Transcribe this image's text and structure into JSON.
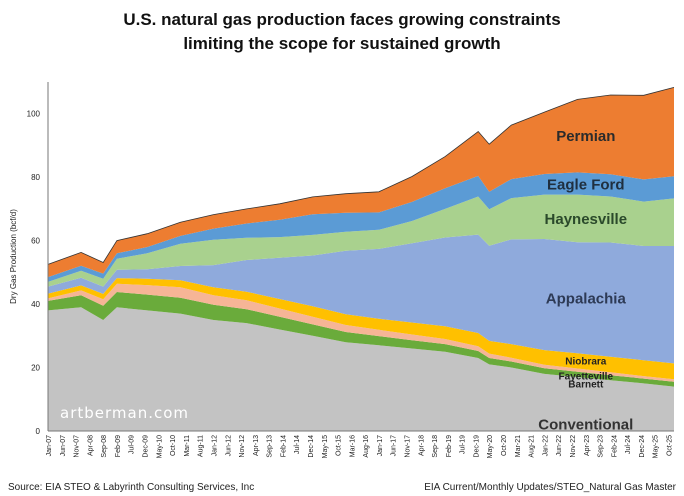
{
  "title_line1": "U.S. natural gas production faces growing constraints",
  "title_line2": "limiting the scope for sustained growth",
  "source_left": "Source: EIA STEO & Labyrinth Consulting Services, Inc",
  "source_right": "EIA Current/Monthly Updates/STEO_Natural Gas Master",
  "watermark": "artberman.com",
  "colors": {
    "Conventional": "#c3c3c3",
    "Barnett": "#6aab3b",
    "Fayetteville": "#f6b596",
    "Niobrara": "#ffc000",
    "Appalachia": "#8faadc",
    "Haynesville": "#a9d18e",
    "Eagle Ford": "#5b9bd5",
    "Permian": "#ed7d31"
  },
  "chart_data": {
    "type": "area",
    "stacked": true,
    "title": "U.S. natural gas production faces growing constraints limiting the scope for sustained growth",
    "xlabel": "",
    "ylabel": "Dry Gas Production (bcf/d)",
    "ylim": [
      0,
      110
    ],
    "yticks": [
      0,
      20,
      40,
      60,
      80,
      100
    ],
    "grid": false,
    "x": [
      "Jan-07",
      "Jan-08",
      "Sep-08",
      "Feb-09",
      "Jan-10",
      "Jan-11",
      "Jan-12",
      "Jan-13",
      "Jan-14",
      "Jan-15",
      "Jan-16",
      "Jan-17",
      "Jan-18",
      "Jan-19",
      "Jan-20",
      "May-20",
      "Jan-21",
      "Jan-22",
      "Jan-23",
      "Jan-24",
      "Jan-25",
      "Dec-25"
    ],
    "xticks": [
      "Jan-07",
      "Jun-07",
      "Nov-07",
      "Apr-08",
      "Sep-08",
      "Feb-09",
      "Jul-09",
      "Dec-09",
      "May-10",
      "Oct-10",
      "Mar-11",
      "Aug-11",
      "Jan-12",
      "Jun-12",
      "Nov-12",
      "Apr-13",
      "Sep-13",
      "Feb-14",
      "Jul-14",
      "Dec-14",
      "May-15",
      "Oct-15",
      "Mar-16",
      "Aug-16",
      "Jan-17",
      "Jun-17",
      "Nov-17",
      "Apr-18",
      "Sep-18",
      "Feb-19",
      "Jul-19",
      "Dec-19",
      "May-20",
      "Oct-20",
      "Mar-21",
      "Aug-21",
      "Jan-22",
      "Jun-22",
      "Nov-22",
      "Apr-23",
      "Sep-23",
      "Feb-24",
      "Jul-24",
      "Dec-24",
      "May-25",
      "Oct-25"
    ],
    "series": [
      {
        "name": "Conventional",
        "values": [
          38,
          39,
          35,
          39,
          38,
          37,
          35,
          34,
          32,
          30,
          28,
          27,
          26,
          25,
          23,
          21,
          20,
          18,
          17,
          16,
          15,
          14
        ]
      },
      {
        "name": "Barnett",
        "values": [
          3.0,
          3.8,
          4.5,
          4.8,
          5.0,
          5.0,
          4.8,
          4.4,
          4.0,
          3.6,
          3.2,
          2.9,
          2.6,
          2.4,
          2.2,
          2.0,
          1.9,
          1.8,
          1.7,
          1.6,
          1.5,
          1.5
        ]
      },
      {
        "name": "Fayetteville",
        "values": [
          0.8,
          1.5,
          2.0,
          2.6,
          3.0,
          3.3,
          3.0,
          2.8,
          2.6,
          2.4,
          2.2,
          2.0,
          1.8,
          1.6,
          1.5,
          1.4,
          1.2,
          1.1,
          1.0,
          0.9,
          0.8,
          0.8
        ]
      },
      {
        "name": "Niobrara",
        "values": [
          1.5,
          1.6,
          1.7,
          1.8,
          2.0,
          2.2,
          2.5,
          2.7,
          3.0,
          3.3,
          3.4,
          3.5,
          3.8,
          4.0,
          4.2,
          4.0,
          4.3,
          4.6,
          4.8,
          4.9,
          5.0,
          5.0
        ]
      },
      {
        "name": "Appalachia",
        "values": [
          2.2,
          2.4,
          2.3,
          2.6,
          3.0,
          4.5,
          7.0,
          10.0,
          13.0,
          16.0,
          20.0,
          22.0,
          25.0,
          28.0,
          31.0,
          30.0,
          33.0,
          35.0,
          35.0,
          36.0,
          36.0,
          37.0
        ]
      },
      {
        "name": "Haynesville",
        "values": [
          1.5,
          2.2,
          2.5,
          3.5,
          5.0,
          7.0,
          8.0,
          7.0,
          6.5,
          6.5,
          6.0,
          6.0,
          7.0,
          9.0,
          12.0,
          11.5,
          13.0,
          14.0,
          15.0,
          14.5,
          14.0,
          15.0
        ]
      },
      {
        "name": "Eagle Ford",
        "values": [
          1.5,
          1.6,
          1.6,
          1.7,
          2.0,
          2.5,
          3.5,
          4.5,
          5.5,
          6.5,
          6.0,
          5.5,
          6.0,
          6.5,
          6.5,
          5.5,
          6.0,
          6.5,
          7.0,
          7.0,
          7.0,
          7.0
        ]
      },
      {
        "name": "Permian",
        "values": [
          4.0,
          4.2,
          3.5,
          4.0,
          4.2,
          4.3,
          4.4,
          4.6,
          5.0,
          5.5,
          6.0,
          6.5,
          8.0,
          10.0,
          14.0,
          15.0,
          17.0,
          19.5,
          23.0,
          25.0,
          26.5,
          28.0
        ]
      }
    ],
    "annotations": [
      "Permian",
      "Eagle Ford",
      "Haynesville",
      "Appalachia",
      "Niobrara",
      "Fayetteville",
      "Barnett",
      "Conventional"
    ]
  }
}
